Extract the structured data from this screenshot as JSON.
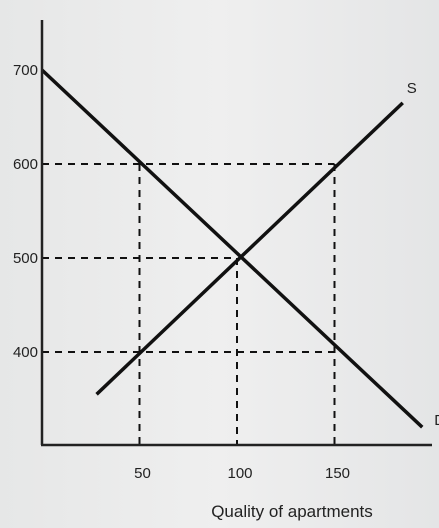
{
  "chart_data": {
    "type": "line",
    "xlabel": "Quality of apartments",
    "ylabel": "",
    "x_ticks": [
      50,
      100,
      150
    ],
    "y_ticks": [
      400,
      500,
      600,
      700
    ],
    "xlim": [
      0,
      190
    ],
    "ylim": [
      300,
      750
    ],
    "grid": false,
    "series": [
      {
        "name": "D",
        "x": [
          0,
          195
        ],
        "y": [
          700,
          320
        ],
        "color": "#111111"
      },
      {
        "name": "S",
        "x": [
          28,
          185
        ],
        "y": [
          355,
          665
        ],
        "color": "#111111"
      }
    ],
    "reference_points": [
      {
        "x": 50,
        "y": 600
      },
      {
        "x": 150,
        "y": 600
      },
      {
        "x": 100,
        "y": 500
      },
      {
        "x": 50,
        "y": 400
      },
      {
        "x": 150,
        "y": 400
      }
    ]
  },
  "colors": {
    "line": "#111111",
    "axis": "#222222",
    "background": "#ebebeb"
  }
}
